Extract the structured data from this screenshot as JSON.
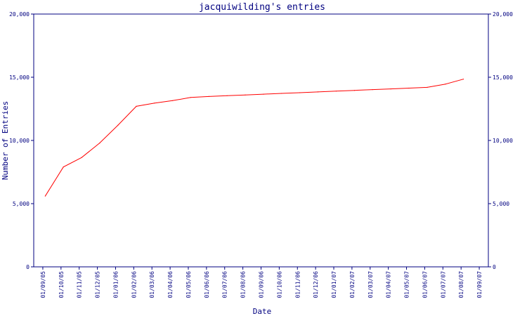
{
  "chart_data": {
    "type": "line",
    "title": "jacquiwilding's entries",
    "xlabel": "Date",
    "ylabel": "Number of Entries",
    "ylim": [
      0,
      20000
    ],
    "grid": false,
    "colors": {
      "axis": "#000080",
      "line": "#ff0000",
      "background": "#ffffff"
    },
    "y_ticks": [
      0,
      5000,
      10000,
      15000,
      20000
    ],
    "y_tick_labels": [
      "0",
      "5,000",
      "10,000",
      "15,000",
      "20,000"
    ],
    "x_tick_labels": [
      "01/09/05",
      "01/10/05",
      "01/11/05",
      "01/12/05",
      "01/01/06",
      "01/02/06",
      "01/03/06",
      "01/04/06",
      "01/05/06",
      "01/06/06",
      "01/07/06",
      "01/08/06",
      "01/09/06",
      "01/10/06",
      "01/11/06",
      "01/12/06",
      "01/01/07",
      "01/02/07",
      "01/03/07",
      "01/04/07",
      "01/05/07",
      "01/06/07",
      "01/07/07",
      "01/08/07",
      "01/09/07"
    ],
    "series": [
      {
        "values": [
          [
            "2005-09-05",
            5600
          ],
          [
            "2005-10-05",
            7900
          ],
          [
            "2005-11-05",
            8650
          ],
          [
            "2005-12-05",
            9800
          ],
          [
            "2006-01-05",
            11200
          ],
          [
            "2006-02-05",
            12700
          ],
          [
            "2006-03-05",
            12950
          ],
          [
            "2006-04-05",
            13150
          ],
          [
            "2006-05-05",
            13400
          ],
          [
            "2006-06-05",
            13480
          ],
          [
            "2006-07-05",
            13540
          ],
          [
            "2006-08-05",
            13600
          ],
          [
            "2006-09-05",
            13660
          ],
          [
            "2006-10-05",
            13720
          ],
          [
            "2006-11-05",
            13780
          ],
          [
            "2006-12-05",
            13840
          ],
          [
            "2007-01-05",
            13900
          ],
          [
            "2007-02-05",
            13960
          ],
          [
            "2007-03-05",
            14020
          ],
          [
            "2007-04-05",
            14080
          ],
          [
            "2007-05-05",
            14140
          ],
          [
            "2007-06-05",
            14200
          ],
          [
            "2007-07-05",
            14450
          ],
          [
            "2007-08-05",
            14850
          ]
        ]
      }
    ]
  }
}
